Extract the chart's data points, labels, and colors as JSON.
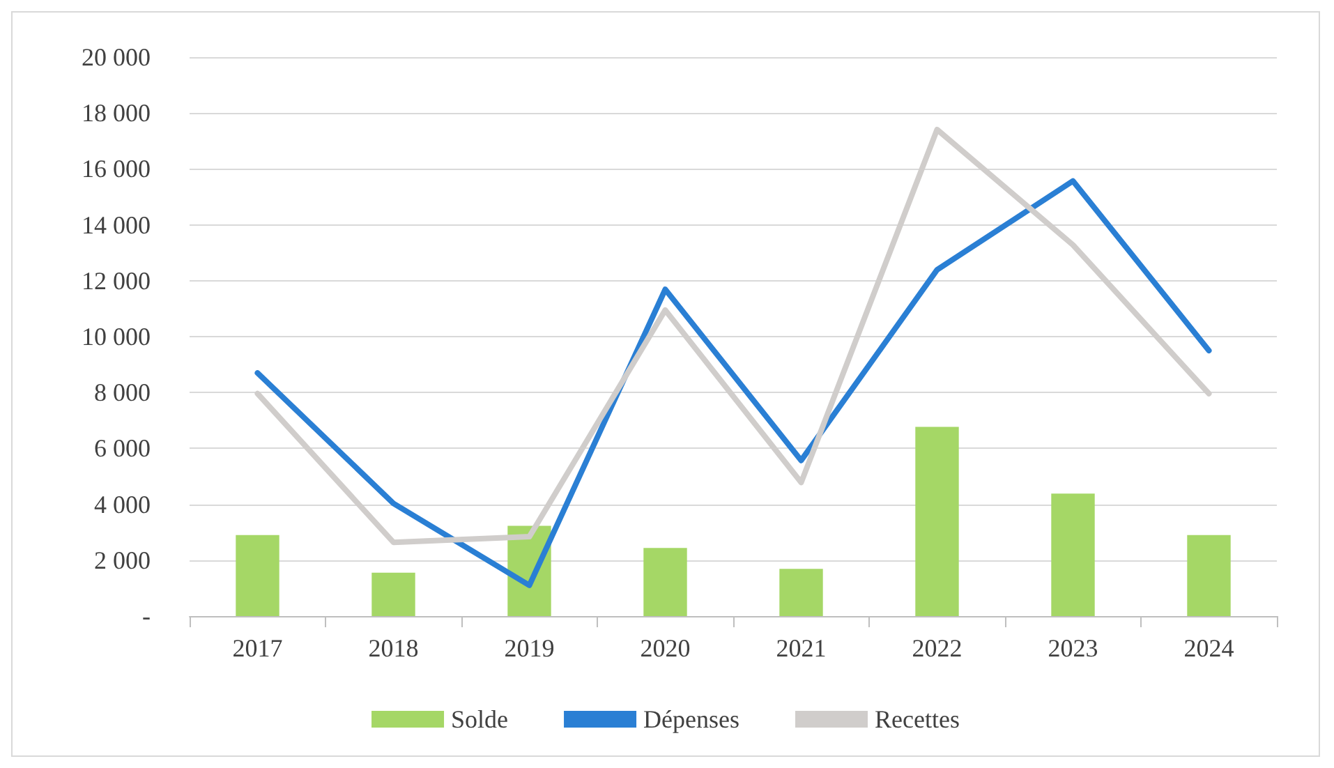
{
  "chart_data": {
    "type": "bar",
    "categories": [
      "2017",
      "2018",
      "2019",
      "2020",
      "2021",
      "2022",
      "2023",
      "2024"
    ],
    "series": [
      {
        "name": "Solde",
        "color": "#a5d766",
        "values": [
          2900,
          1550,
          3230,
          2440,
          1690,
          6770,
          4380,
          2900
        ]
      },
      {
        "name": "Dépenses",
        "type": "line",
        "color": "#2a7fd4",
        "values": [
          8700,
          4030,
          1100,
          11690,
          5570,
          12390,
          15570,
          9500
        ]
      },
      {
        "name": "Recettes",
        "type": "line",
        "color": "#d0cdcb",
        "values": [
          7960,
          2640,
          2840,
          10950,
          4780,
          17410,
          13280,
          7960
        ]
      }
    ],
    "ylim": [
      0,
      20000
    ],
    "yticks": [
      {
        "value": 0,
        "label": "-"
      },
      {
        "value": 2000,
        "label": "2 000"
      },
      {
        "value": 4000,
        "label": "4 000"
      },
      {
        "value": 6000,
        "label": "6 000"
      },
      {
        "value": 8000,
        "label": "8 000"
      },
      {
        "value": 10000,
        "label": "10 000"
      },
      {
        "value": 12000,
        "label": "12 000"
      },
      {
        "value": 14000,
        "label": "14 000"
      },
      {
        "value": 16000,
        "label": "16 000"
      },
      {
        "value": 18000,
        "label": "18 000"
      },
      {
        "value": 20000,
        "label": "20 000"
      }
    ],
    "grid": "y",
    "legend": "bottom",
    "marker": "none",
    "line_style": "solid"
  }
}
